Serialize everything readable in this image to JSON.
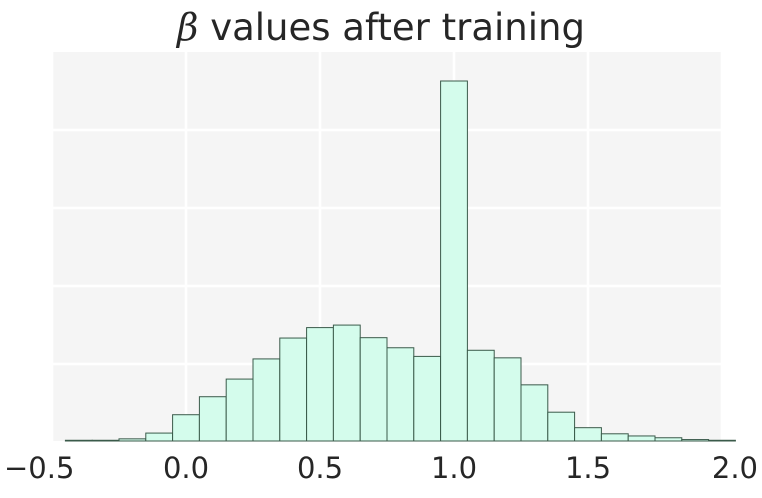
{
  "chart_data": {
    "type": "bar",
    "title_symbol": "β",
    "title_text": " values after training",
    "xlabel": "",
    "ylabel": "",
    "xlim": [
      -0.5,
      2.0
    ],
    "ylim": [
      0,
      1.0
    ],
    "x_ticks": [
      "−0.5",
      "0.0",
      "0.5",
      "1.0",
      "1.5",
      "2.0"
    ],
    "x_tick_values": [
      -0.5,
      0.0,
      0.5,
      1.0,
      1.5,
      2.0
    ],
    "y_ticks_labeled": false,
    "grid": true,
    "bin_width": 0.1,
    "bin_left_edges": [
      -0.45,
      -0.35,
      -0.25,
      -0.15,
      -0.05,
      0.05,
      0.15,
      0.25,
      0.35,
      0.45,
      0.55,
      0.65,
      0.75,
      0.85,
      0.95,
      1.05,
      1.15,
      1.25,
      1.35,
      1.45,
      1.55,
      1.65,
      1.75,
      1.85,
      1.95
    ],
    "relative_counts": [
      0.002,
      0.002,
      0.006,
      0.022,
      0.073,
      0.123,
      0.172,
      0.228,
      0.286,
      0.315,
      0.322,
      0.287,
      0.259,
      0.235,
      1.0,
      0.252,
      0.231,
      0.156,
      0.08,
      0.037,
      0.02,
      0.014,
      0.009,
      0.004,
      0.002
    ],
    "colors": {
      "bar_fill": "#d4fcec",
      "bar_edge": "#3a5a4a",
      "plot_background": "#f5f5f5",
      "grid": "#ffffff",
      "text": "#262626"
    }
  }
}
